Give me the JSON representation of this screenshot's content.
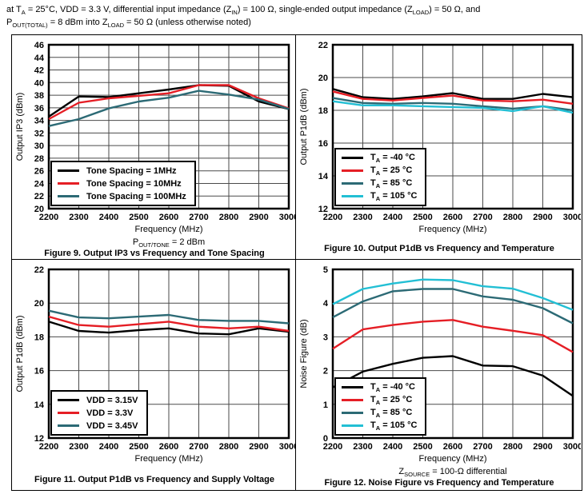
{
  "header": {
    "note_parts": [
      {
        "t": "at T"
      },
      {
        "s": "A"
      },
      {
        "t": " = 25°C, VDD = 3.3 V, differential input impedance (Z"
      },
      {
        "s": "IN"
      },
      {
        "t": ") = 100 Ω, single-ended output impedance (Z"
      },
      {
        "s": "LOAD"
      },
      {
        "t": ") = 50 Ω, and"
      },
      {
        "br": true
      },
      {
        "t": "P"
      },
      {
        "s": "OUT(TOTAL)"
      },
      {
        "t": " = 8 dBm into Z"
      },
      {
        "s": "LOAD"
      },
      {
        "t": " = 50 Ω (unless otherwise noted)"
      }
    ]
  },
  "chart_data": [
    {
      "id": "output-ip3-vs-frequency-tone-spacing",
      "type": "line",
      "caption": "Figure 9. Output IP3 vs Frequency and Tone Spacing",
      "xlabel": "Frequency (MHz)",
      "ylabel": "Output IP3 (dBm)",
      "xlim": [
        2200,
        3000
      ],
      "ylim": [
        20,
        46
      ],
      "xticks": [
        2200,
        2300,
        2400,
        2500,
        2600,
        2700,
        2800,
        2900,
        3000
      ],
      "yticks": [
        20,
        22,
        24,
        26,
        28,
        30,
        32,
        34,
        36,
        38,
        40,
        42,
        44,
        46
      ],
      "grid": true,
      "legend_position": "bottom-left",
      "condition_parts": [
        {
          "t": "P"
        },
        {
          "s": "OUT/TONE"
        },
        {
          "t": " = 2 dBm"
        }
      ],
      "x": [
        2200,
        2300,
        2400,
        2500,
        2600,
        2700,
        2800,
        2900,
        3000
      ],
      "series": [
        {
          "name": "Tone Spacing = 1MHz",
          "color": "#000000",
          "label_parts": [
            {
              "t": "Tone Spacing = 1MHz"
            }
          ],
          "values": [
            34.6,
            37.8,
            37.7,
            38.3,
            38.9,
            39.6,
            39.5,
            37.0,
            35.8
          ]
        },
        {
          "name": "Tone Spacing = 10MHz",
          "color": "#e51e25",
          "label_parts": [
            {
              "t": "Tone Spacing = 10MHz"
            }
          ],
          "values": [
            34.2,
            36.8,
            37.5,
            37.9,
            38.3,
            39.6,
            39.6,
            37.5,
            35.9
          ]
        },
        {
          "name": "Tone Spacing = 100MHz",
          "color": "#2c6a75",
          "label_parts": [
            {
              "t": "Tone Spacing = 100MHz"
            }
          ],
          "values": [
            33.1,
            34.2,
            35.9,
            37.0,
            37.6,
            38.7,
            38.1,
            37.3,
            35.8
          ]
        }
      ]
    },
    {
      "id": "output-p1db-vs-frequency-temperature",
      "type": "line",
      "caption": "Figure 10. Output P1dB vs Frequency and Temperature",
      "xlabel": "Frequency (MHz)",
      "ylabel": "Output P1dB (dBm)",
      "xlim": [
        2200,
        3000
      ],
      "ylim": [
        12,
        22
      ],
      "xticks": [
        2200,
        2300,
        2400,
        2500,
        2600,
        2700,
        2800,
        2900,
        3000
      ],
      "yticks": [
        12,
        14,
        16,
        18,
        20,
        22
      ],
      "grid": true,
      "legend_position": "bottom-left",
      "condition_parts": [],
      "x": [
        2200,
        2300,
        2400,
        2500,
        2600,
        2700,
        2800,
        2900,
        3000
      ],
      "series": [
        {
          "name": "TA = -40 °C",
          "color": "#000000",
          "label_parts": [
            {
              "t": "T"
            },
            {
              "s": "A"
            },
            {
              "t": " = -40 °C"
            }
          ],
          "values": [
            19.3,
            18.8,
            18.7,
            18.85,
            19.05,
            18.7,
            18.7,
            19.0,
            18.8
          ]
        },
        {
          "name": "TA = 25 °C",
          "color": "#e51e25",
          "label_parts": [
            {
              "t": "T"
            },
            {
              "s": "A"
            },
            {
              "t": " = 25 °C"
            }
          ],
          "values": [
            19.15,
            18.7,
            18.6,
            18.75,
            18.9,
            18.6,
            18.55,
            18.65,
            18.4
          ]
        },
        {
          "name": "TA = 85 °C",
          "color": "#2c6a75",
          "label_parts": [
            {
              "t": "T"
            },
            {
              "s": "A"
            },
            {
              "t": " = 85 °C"
            }
          ],
          "values": [
            18.75,
            18.45,
            18.4,
            18.45,
            18.4,
            18.25,
            18.1,
            18.25,
            18.0
          ]
        },
        {
          "name": "TA = 105 °C",
          "color": "#22bfd4",
          "label_parts": [
            {
              "t": "T"
            },
            {
              "s": "A"
            },
            {
              "t": " = 105 °C"
            }
          ],
          "values": [
            18.55,
            18.3,
            18.3,
            18.25,
            18.2,
            18.15,
            17.95,
            18.25,
            17.85
          ]
        }
      ]
    },
    {
      "id": "output-p1db-vs-frequency-supply-voltage",
      "type": "line",
      "caption": "Figure 11. Output P1dB vs Frequency and Supply Voltage",
      "xlabel": "Frequency (MHz)",
      "ylabel": "Output P1dB (dBm)",
      "xlim": [
        2200,
        3000
      ],
      "ylim": [
        12,
        22
      ],
      "xticks": [
        2200,
        2300,
        2400,
        2500,
        2600,
        2700,
        2800,
        2900,
        3000
      ],
      "yticks": [
        12,
        14,
        16,
        18,
        20,
        22
      ],
      "grid": true,
      "legend_position": "bottom-left",
      "condition_parts": [],
      "x": [
        2200,
        2300,
        2400,
        2500,
        2600,
        2700,
        2800,
        2900,
        3000
      ],
      "series": [
        {
          "name": "VDD = 3.15V",
          "color": "#000000",
          "label_parts": [
            {
              "t": "VDD = 3.15V"
            }
          ],
          "values": [
            18.9,
            18.35,
            18.25,
            18.4,
            18.5,
            18.2,
            18.15,
            18.5,
            18.3
          ]
        },
        {
          "name": "VDD = 3.3V",
          "color": "#e51e25",
          "label_parts": [
            {
              "t": "VDD = 3.3V"
            }
          ],
          "values": [
            19.2,
            18.7,
            18.6,
            18.75,
            18.9,
            18.6,
            18.5,
            18.6,
            18.35
          ]
        },
        {
          "name": "VDD = 3.45V",
          "color": "#2c6a75",
          "label_parts": [
            {
              "t": "VDD = 3.45V"
            }
          ],
          "values": [
            19.55,
            19.15,
            19.1,
            19.2,
            19.3,
            19.0,
            18.95,
            18.95,
            18.8
          ]
        }
      ]
    },
    {
      "id": "noise-figure-vs-frequency-temperature",
      "type": "line",
      "caption": "Figure 12. Noise Figure vs Frequency and Temperature",
      "xlabel": "Frequency (MHz)",
      "ylabel": "Noise Figure (dB)",
      "xlim": [
        2200,
        3000
      ],
      "ylim": [
        0,
        5
      ],
      "xticks": [
        2200,
        2300,
        2400,
        2500,
        2600,
        2700,
        2800,
        2900,
        3000
      ],
      "yticks": [
        0,
        1,
        2,
        3,
        4,
        5
      ],
      "grid": true,
      "legend_position": "bottom-left",
      "condition_parts": [
        {
          "t": "Z"
        },
        {
          "s": "SOURCE"
        },
        {
          "t": " = 100-Ω differential"
        }
      ],
      "x": [
        2200,
        2300,
        2400,
        2500,
        2600,
        2700,
        2800,
        2900,
        3000
      ],
      "series": [
        {
          "name": "TA = -40 °C",
          "color": "#000000",
          "label_parts": [
            {
              "t": "T"
            },
            {
              "s": "A"
            },
            {
              "t": " = -40 °C"
            }
          ],
          "values": [
            1.5,
            1.97,
            2.2,
            2.38,
            2.43,
            2.15,
            2.13,
            1.85,
            1.25
          ]
        },
        {
          "name": "TA = 25 °C",
          "color": "#e51e25",
          "label_parts": [
            {
              "t": "T"
            },
            {
              "s": "A"
            },
            {
              "t": " = 25 °C"
            }
          ],
          "values": [
            2.65,
            3.22,
            3.35,
            3.45,
            3.5,
            3.3,
            3.18,
            3.05,
            2.55
          ]
        },
        {
          "name": "TA = 85 °C",
          "color": "#2c6a75",
          "label_parts": [
            {
              "t": "T"
            },
            {
              "s": "A"
            },
            {
              "t": " = 85 °C"
            }
          ],
          "values": [
            3.58,
            4.05,
            4.35,
            4.42,
            4.42,
            4.2,
            4.1,
            3.85,
            3.4
          ]
        },
        {
          "name": "TA = 105 °C",
          "color": "#22bfd4",
          "label_parts": [
            {
              "t": "T"
            },
            {
              "s": "A"
            },
            {
              "t": " = 105 °C"
            }
          ],
          "values": [
            3.97,
            4.42,
            4.58,
            4.7,
            4.68,
            4.5,
            4.43,
            4.15,
            3.8
          ]
        }
      ]
    }
  ]
}
